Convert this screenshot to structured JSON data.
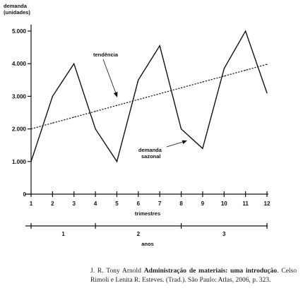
{
  "chart_data": {
    "type": "line",
    "ylabel_line1": "demanda",
    "ylabel_line2": "(unidades)",
    "xlabel": "trimestres",
    "period_label": "anos",
    "x": [
      1,
      2,
      3,
      4,
      5,
      6,
      7,
      8,
      9,
      10,
      11,
      12
    ],
    "x_tick_labels": [
      "1",
      "2",
      "3",
      "4",
      "5",
      "6",
      "7",
      "8",
      "9",
      "10",
      "11",
      "12"
    ],
    "y_tick_values": [
      0,
      1000,
      2000,
      3000,
      4000,
      5000
    ],
    "y_tick_labels": [
      "0",
      "1.000",
      "2.000",
      "3.000",
      "4.000",
      "5.000"
    ],
    "ylim": [
      0,
      5000
    ],
    "xlim": [
      1,
      12
    ],
    "series": [
      {
        "name": "demanda sazonal",
        "style": "solid",
        "values": [
          1000,
          3000,
          4000,
          2000,
          1000,
          3500,
          4550,
          2000,
          1400,
          3850,
          5000,
          3100
        ]
      },
      {
        "name": "tendência",
        "style": "dashed",
        "values": [
          2000,
          2180,
          2360,
          2540,
          2720,
          2900,
          3080,
          3260,
          3440,
          3620,
          3800,
          3980
        ]
      }
    ],
    "years": [
      {
        "label": "1",
        "from": 1,
        "to": 4
      },
      {
        "label": "2",
        "from": 4,
        "to": 8
      },
      {
        "label": "3",
        "from": 8,
        "to": 12
      }
    ],
    "grid": false,
    "legend": "none",
    "colors": {
      "line": "#111111",
      "text": "#111111",
      "background": "#ffffff"
    }
  },
  "source": {
    "author": "J. R. Tony Arnold",
    "title": "Administração de materiais: uma introdução",
    "rest": ". Celso Rimoli e Lenita R. Esteves. (Trad.). São Paulo: Atlas, 2006, p. 323."
  }
}
